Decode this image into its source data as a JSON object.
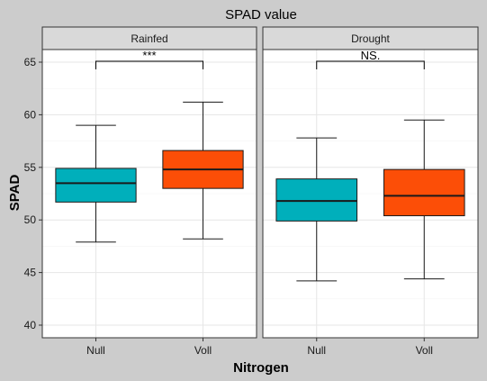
{
  "chart_data": {
    "type": "box",
    "title": "SPAD value",
    "xlabel": "Nitrogen",
    "ylabel": "SPAD",
    "ylim": [
      38.8,
      66.2
    ],
    "yticks": [
      40,
      45,
      50,
      55,
      60,
      65
    ],
    "categories": [
      "Null",
      "Voll"
    ],
    "colors": {
      "Null": "#00AFBB",
      "Voll": "#FC4E07"
    },
    "grid": true,
    "legend": "none",
    "facets": [
      {
        "name": "Rainfed",
        "significance": "***",
        "boxes": [
          {
            "category": "Null",
            "min": 47.9,
            "q1": 51.7,
            "median": 53.5,
            "q3": 54.9,
            "max": 59.0
          },
          {
            "category": "Voll",
            "min": 48.2,
            "q1": 53.0,
            "median": 54.8,
            "q3": 56.6,
            "max": 61.2
          }
        ]
      },
      {
        "name": "Drought",
        "significance": "NS.",
        "boxes": [
          {
            "category": "Null",
            "min": 44.2,
            "q1": 49.9,
            "median": 51.8,
            "q3": 53.9,
            "max": 57.8
          },
          {
            "category": "Voll",
            "min": 44.4,
            "q1": 50.4,
            "median": 52.3,
            "q3": 54.8,
            "max": 59.5
          }
        ]
      }
    ]
  }
}
